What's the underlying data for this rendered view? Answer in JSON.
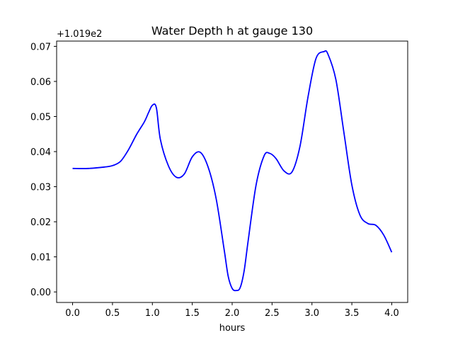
{
  "chart_data": {
    "type": "line",
    "title": "Water Depth h at gauge 130",
    "xlabel": "hours",
    "ylabel": "",
    "y_offset_label": "+1.019e2",
    "xlim": [
      -0.2,
      4.2
    ],
    "ylim": [
      -0.003,
      0.0715
    ],
    "x_ticks": [
      0.0,
      0.5,
      1.0,
      1.5,
      2.0,
      2.5,
      3.0,
      3.5,
      4.0
    ],
    "x_tick_labels": [
      "0.0",
      "0.5",
      "1.0",
      "1.5",
      "2.0",
      "2.5",
      "3.0",
      "3.5",
      "4.0"
    ],
    "y_ticks": [
      0.0,
      0.01,
      0.02,
      0.03,
      0.04,
      0.05,
      0.06,
      0.07
    ],
    "y_tick_labels": [
      "0.00",
      "0.01",
      "0.02",
      "0.03",
      "0.04",
      "0.05",
      "0.06",
      "0.07"
    ],
    "grid": false,
    "line_color": "#0000ff",
    "series": [
      {
        "x": [
          0.0,
          0.2,
          0.4,
          0.5,
          0.6,
          0.7,
          0.8,
          0.9,
          0.95,
          1.0,
          1.05,
          1.1,
          1.2,
          1.3,
          1.4,
          1.5,
          1.6,
          1.7,
          1.8,
          1.9,
          1.95,
          2.0,
          2.05,
          2.1,
          2.15,
          2.2,
          2.3,
          2.4,
          2.47,
          2.55,
          2.65,
          2.75,
          2.85,
          2.95,
          3.05,
          3.15,
          3.2,
          3.3,
          3.4,
          3.5,
          3.6,
          3.7,
          3.8,
          3.9,
          4.0
        ],
        "y": [
          0.0352,
          0.0352,
          0.0356,
          0.036,
          0.0372,
          0.0405,
          0.0448,
          0.0485,
          0.051,
          0.0532,
          0.0525,
          0.0435,
          0.036,
          0.0327,
          0.0336,
          0.0385,
          0.0398,
          0.0355,
          0.0265,
          0.012,
          0.0045,
          0.001,
          0.0004,
          0.0012,
          0.006,
          0.0145,
          0.0305,
          0.0388,
          0.0395,
          0.038,
          0.0345,
          0.0342,
          0.0415,
          0.0555,
          0.0665,
          0.0685,
          0.0678,
          0.0605,
          0.0455,
          0.0305,
          0.022,
          0.0195,
          0.019,
          0.0162,
          0.0113
        ]
      }
    ]
  }
}
